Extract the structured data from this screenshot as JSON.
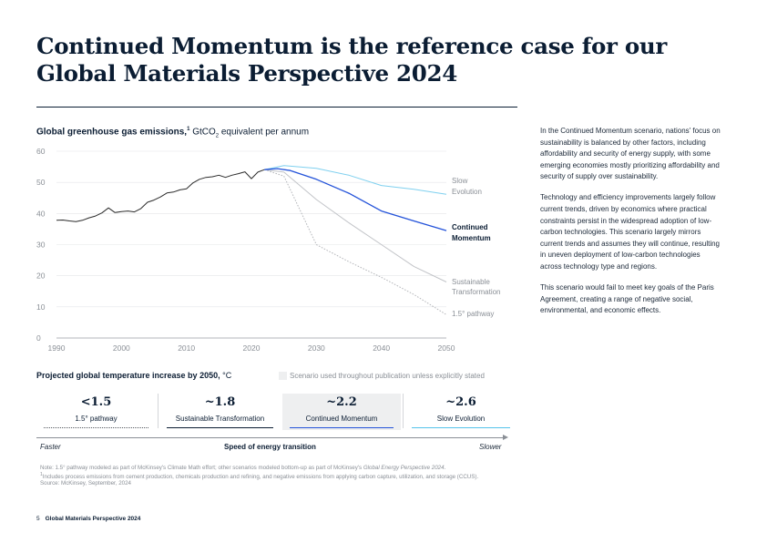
{
  "title": "Continued Momentum is the reference case for our Global Materials Perspective 2024",
  "chart_heading": {
    "bold": "Global greenhouse gas emissions,",
    "sup": "1",
    "unit_prefix": "GtCO",
    "unit_sub": "2",
    "unit_suffix": "equivalent per annum"
  },
  "chart_data": {
    "type": "line",
    "title": "Global greenhouse gas emissions, GtCO2 equivalent per annum",
    "xlim": [
      1990,
      2050
    ],
    "ylim": [
      0,
      60
    ],
    "x_ticks": [
      "1990",
      "2000",
      "2010",
      "2020",
      "2030",
      "2040",
      "2050"
    ],
    "y_ticks": [
      "60",
      "50",
      "40",
      "30",
      "20",
      "10",
      "0"
    ],
    "grid": true,
    "series": [
      {
        "name": "Historical",
        "color": "#2b2b2b",
        "style": "solid",
        "points": [
          [
            1990,
            37.8
          ],
          [
            1991,
            37.9
          ],
          [
            1992,
            37.6
          ],
          [
            1993,
            37.4
          ],
          [
            1994,
            37.8
          ],
          [
            1995,
            38.6
          ],
          [
            1996,
            39.2
          ],
          [
            1997,
            40.2
          ],
          [
            1998,
            41.8
          ],
          [
            1999,
            40.3
          ],
          [
            2000,
            40.6
          ],
          [
            2001,
            40.8
          ],
          [
            2002,
            40.5
          ],
          [
            2003,
            41.6
          ],
          [
            2004,
            43.6
          ],
          [
            2005,
            44.3
          ],
          [
            2006,
            45.3
          ],
          [
            2007,
            46.6
          ],
          [
            2008,
            46.9
          ],
          [
            2009,
            47.6
          ],
          [
            2010,
            47.9
          ],
          [
            2011,
            49.8
          ],
          [
            2012,
            51.0
          ],
          [
            2013,
            51.6
          ],
          [
            2014,
            51.8
          ],
          [
            2015,
            52.3
          ],
          [
            2016,
            51.6
          ],
          [
            2017,
            52.3
          ],
          [
            2018,
            52.8
          ],
          [
            2019,
            53.4
          ],
          [
            2020,
            51.2
          ],
          [
            2021,
            53.3
          ],
          [
            2022,
            54.1
          ]
        ]
      },
      {
        "name": "Slow Evolution",
        "label_lines": [
          "Slow",
          "Evolution"
        ],
        "color": "#7fd0ef",
        "style": "solid",
        "points": [
          [
            2022,
            54.1
          ],
          [
            2025,
            55.4
          ],
          [
            2030,
            54.5
          ],
          [
            2035,
            52.3
          ],
          [
            2040,
            49.0
          ],
          [
            2045,
            47.8
          ],
          [
            2050,
            46.2
          ]
        ]
      },
      {
        "name": "Continued Momentum",
        "label_lines": [
          "Continued",
          "Momentum"
        ],
        "color": "#2352d9",
        "style": "solid",
        "points": [
          [
            2022,
            54.1
          ],
          [
            2024,
            54.4
          ],
          [
            2026,
            53.8
          ],
          [
            2030,
            51.0
          ],
          [
            2035,
            46.5
          ],
          [
            2040,
            40.8
          ],
          [
            2045,
            37.6
          ],
          [
            2050,
            34.5
          ]
        ]
      },
      {
        "name": "Sustainable Transformation",
        "label_lines": [
          "Sustainable",
          "Transformation"
        ],
        "color": "#c2c4c8",
        "style": "solid",
        "points": [
          [
            2022,
            54.1
          ],
          [
            2025,
            53.3
          ],
          [
            2030,
            44.5
          ],
          [
            2035,
            37.0
          ],
          [
            2040,
            30.0
          ],
          [
            2045,
            23.0
          ],
          [
            2050,
            18.0
          ]
        ]
      },
      {
        "name": "1.5° pathway",
        "label_lines": [
          "1.5° pathway"
        ],
        "color": "#b5b7bb",
        "style": "dotted",
        "points": [
          [
            2022,
            54.1
          ],
          [
            2025,
            52.0
          ],
          [
            2030,
            30.0
          ],
          [
            2035,
            24.5
          ],
          [
            2040,
            19.5
          ],
          [
            2045,
            14.0
          ],
          [
            2050,
            7.5
          ]
        ]
      }
    ]
  },
  "side_paragraphs": [
    "In the Continued Momentum scenario, nations' focus on sustainability is balanced by other factors, including affordability and security of energy supply, with some emerging economies mostly prioritizing affordability and security of supply over sustainability.",
    "Technology and efficiency improvements largely follow current trends, driven by economics where practical constraints persist in the widespread adoption of low-carbon technologies. This scenario largely mirrors current trends and assumes they will continue, resulting in uneven deployment of low-carbon technologies across technology type and regions.",
    "This scenario would fail to meet key goals of the Paris Agreement, creating a range of negative social, environmental, and economic effects."
  ],
  "temperature": {
    "heading_bold": "Projected global temperature increase by 2050,",
    "heading_unit": "°C",
    "legend": "Scenario used throughout publication unless explicitly stated",
    "legend_color": "#eeeff0",
    "cells": [
      {
        "value": "<1.5",
        "name": "1.5° pathway",
        "color": "#555a60",
        "style": "dotted"
      },
      {
        "value": "~1.8",
        "name": "Sustainable Transformation",
        "color": "#0b1d33",
        "style": "solid"
      },
      {
        "value": "~2.2",
        "name": "Continued Momentum",
        "color": "#2352d9",
        "style": "solid"
      },
      {
        "value": "~2.6",
        "name": "Slow Evolution",
        "color": "#56c3ea",
        "style": "solid"
      }
    ],
    "faster": "Faster",
    "speed_label": "Speed of energy transition",
    "slower": "Slower"
  },
  "notes": {
    "note_prefix": "Note: 1.5° pathway modeled as part of McKinsey's Climate Math effort; other scenarios modeled bottom-up as part of McKinsey's ",
    "note_italic": "Global Energy Perspective 2024",
    "note_suffix": ".",
    "footnote_mark": "1",
    "footnote": "Includes process emissions from cement production, chemicals production and refining, and negative emissions from applying carbon capture, utilization, and storage (CCUS).",
    "source": "Source: McKinsey, September, 2024"
  },
  "footer": {
    "page": "5",
    "publication": "Global Materials Perspective 2024"
  }
}
